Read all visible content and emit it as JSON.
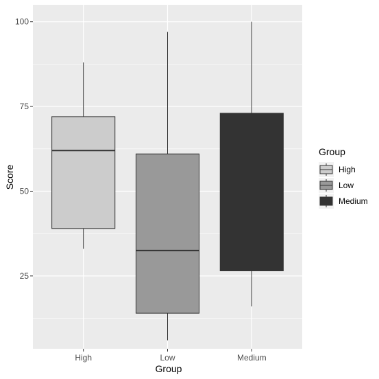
{
  "chart_data": {
    "type": "boxplot",
    "xlabel": "Group",
    "ylabel": "Score",
    "categories": [
      "High",
      "Low",
      "Medium"
    ],
    "ylim": [
      3.5,
      105
    ],
    "yticks": [
      25,
      50,
      75,
      100
    ],
    "grid": true,
    "legend": {
      "title": "Group",
      "position": "right"
    },
    "boxes": [
      {
        "name": "High",
        "min": 33,
        "q1": 39,
        "median": 62,
        "q3": 72,
        "max": 88,
        "fill": "#cccccc"
      },
      {
        "name": "Low",
        "min": 6,
        "q1": 14,
        "median": 32.5,
        "q3": 61,
        "max": 97,
        "fill": "#999999"
      },
      {
        "name": "Medium",
        "min": 16,
        "q1": 26.5,
        "median": 27,
        "q3": 73,
        "max": 100,
        "fill": "#333333"
      }
    ]
  },
  "colors": {
    "panel": "#ebebeb",
    "grid_major": "#ffffff",
    "outline": "#333333"
  }
}
